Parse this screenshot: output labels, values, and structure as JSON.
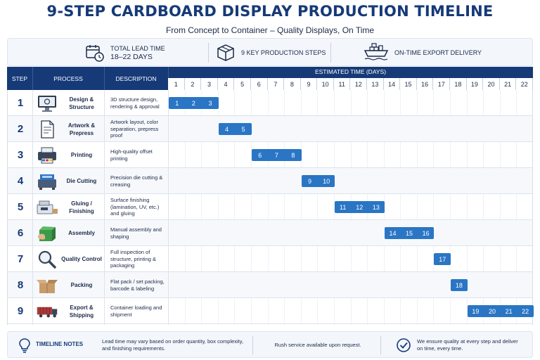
{
  "header": {
    "title": "9-STEP CARDBOARD DISPLAY PRODUCTION TIMELINE",
    "subtitle": "From Concept to Container – Quality Displays, On Time"
  },
  "summary": {
    "lead_time_label": "TOTAL LEAD TIME",
    "lead_time_value": "18–22 DAYS",
    "steps_label": "9 KEY PRODUCTION STEPS",
    "delivery_label": "ON-TIME EXPORT DELIVERY",
    "icons": [
      "calendar-clock-icon",
      "box-icon",
      "ship-icon"
    ]
  },
  "table": {
    "col_step": "STEP",
    "col_process": "PROCESS",
    "col_description": "DESCRIPTION",
    "col_time": "ESTIMATED TIME (DAYS)"
  },
  "colors": {
    "header_navy": "#163a78",
    "bar_blue": "#2a75c4"
  },
  "chart_data": {
    "type": "gantt",
    "title": "9-STEP CARDBOARD DISPLAY PRODUCTION TIMELINE",
    "xlabel": "ESTIMATED TIME (DAYS)",
    "days": [
      "1",
      "2",
      "3",
      "4",
      "5",
      "6",
      "7",
      "8",
      "9",
      "10",
      "11",
      "12",
      "13",
      "14",
      "15",
      "16",
      "17",
      "18",
      "19",
      "20",
      "21",
      "22"
    ],
    "xlim": [
      1,
      22
    ],
    "steps": [
      {
        "num": "1",
        "process": "Design & Structure",
        "description": "3D structure design, rendering & approval",
        "icon": "monitor-icon",
        "day_labels": [
          "1",
          "2",
          "3"
        ],
        "start": 1,
        "end": 3
      },
      {
        "num": "2",
        "process": "Artwork & Prepress",
        "description": "Artwork layout, color separation, prepress proof",
        "icon": "document-icon",
        "day_labels": [
          "4",
          "5"
        ],
        "start": 4,
        "end": 5
      },
      {
        "num": "3",
        "process": "Printing",
        "description": "High-quality offset printing",
        "icon": "printer-icon",
        "day_labels": [
          "6",
          "7",
          "8"
        ],
        "start": 6,
        "end": 8
      },
      {
        "num": "4",
        "process": "Die Cutting",
        "description": "Precision die cutting & creasing",
        "icon": "die-cutter-icon",
        "day_labels": [
          "9",
          "10"
        ],
        "start": 9,
        "end": 10
      },
      {
        "num": "5",
        "process": "Gluing / Finishing",
        "description": "Surface finishing (lamination, UV, etc.) and gluing",
        "icon": "gluing-machine-icon",
        "day_labels": [
          "11",
          "12",
          "13"
        ],
        "start": 11,
        "end": 13
      },
      {
        "num": "6",
        "process": "Assembly",
        "description": "Manual assembly and shaping",
        "icon": "assembly-box-icon",
        "day_labels": [
          "14",
          "15",
          "16"
        ],
        "start": 14,
        "end": 16
      },
      {
        "num": "7",
        "process": "Quality Control",
        "description": "Full inspection of structure, printing & packaging",
        "icon": "magnifier-icon",
        "day_labels": [
          "17"
        ],
        "start": 17,
        "end": 17
      },
      {
        "num": "8",
        "process": "Packing",
        "description": "Flat pack / set packing, barcode & labeling",
        "icon": "open-box-icon",
        "day_labels": [
          "18"
        ],
        "start": 18,
        "end": 18
      },
      {
        "num": "9",
        "process": "Export & Shipping",
        "description": "Container loading and shipment",
        "icon": "container-truck-icon",
        "day_labels": [
          "19",
          "20",
          "21",
          "22"
        ],
        "start": 19,
        "end": 22
      }
    ]
  },
  "notes": {
    "title": "TIMELINE NOTES",
    "note1": "Lead time may vary based on order quantity, box complexity, and finishing requirements.",
    "note2": "Rush service available upon request.",
    "note3": "We ensure quality at every step and deliver on time, every time.",
    "icons": [
      "lightbulb-icon",
      "check-circle-icon"
    ]
  }
}
